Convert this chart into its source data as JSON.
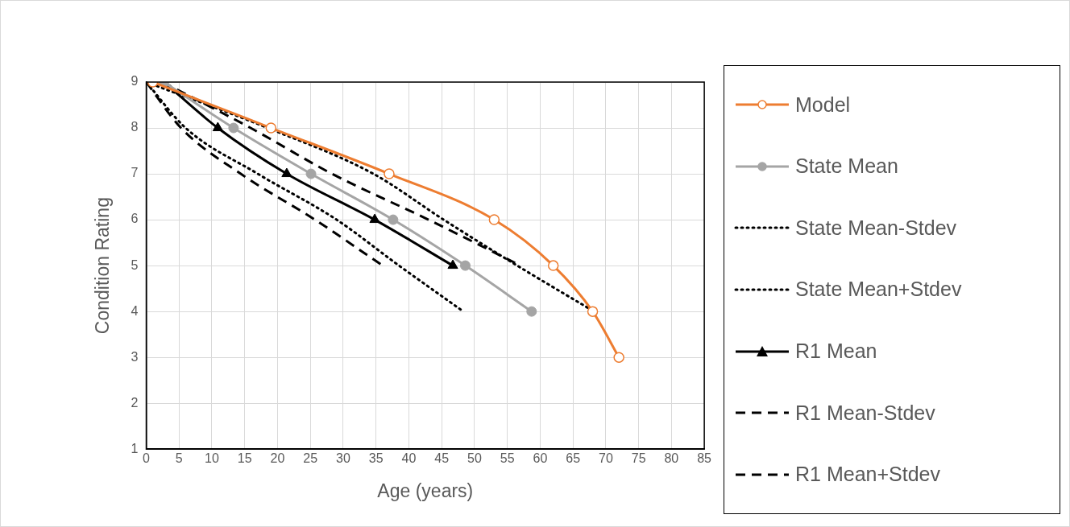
{
  "chart_data": {
    "type": "line",
    "xlabel": "Age (years)",
    "ylabel": "Condition Rating",
    "xlim": [
      0,
      85
    ],
    "xticks": [
      0,
      5,
      10,
      15,
      20,
      25,
      30,
      35,
      40,
      45,
      50,
      55,
      60,
      65,
      70,
      75,
      80,
      85
    ],
    "ylim": [
      1,
      9
    ],
    "yticks": [
      1,
      2,
      3,
      4,
      5,
      6,
      7,
      8,
      9
    ],
    "grid": true,
    "legend": "right",
    "series": [
      {
        "name": "Model",
        "color": "#ed7d31",
        "marker": "circle",
        "line_style": "solid",
        "x": [
          1,
          19,
          37,
          53,
          62,
          68,
          72
        ],
        "values": [
          9,
          8,
          7,
          6,
          5,
          4,
          3
        ]
      },
      {
        "name": "State Mean",
        "color": "#a5a5a5",
        "marker": "circle",
        "line_style": "solid",
        "x": [
          2.7,
          13.3,
          25.1,
          37.6,
          48.6,
          58.7
        ],
        "values": [
          9,
          8,
          7,
          6,
          5,
          4
        ]
      },
      {
        "name": "State Mean-Stdev",
        "color": "#000000",
        "marker": "none",
        "line_style": "dotted",
        "x": [
          0,
          6,
          17,
          29,
          38.5,
          48.3
        ],
        "values": [
          9,
          8,
          7,
          6,
          5,
          4
        ]
      },
      {
        "name": "State Mean+Stdev",
        "color": "#000000",
        "marker": "none",
        "line_style": "dotted",
        "x": [
          0,
          18.5,
          34.6,
          45.3,
          56.5,
          68.2
        ],
        "values": [
          9,
          8,
          7,
          6,
          5,
          4
        ]
      },
      {
        "name": "R1 Mean",
        "color": "#000000",
        "marker": "triangle",
        "line_style": "solid",
        "x": [
          2.7,
          10.9,
          21.4,
          34.8,
          46.7
        ],
        "values": [
          9,
          8,
          7,
          6,
          5
        ]
      },
      {
        "name": "R1 Mean-Stdev",
        "color": "#000000",
        "marker": "none",
        "line_style": "dashed",
        "x": [
          0,
          5.3,
          14.4,
          25.7,
          36
        ],
        "values": [
          9,
          8,
          7,
          6,
          5
        ]
      },
      {
        "name": "R1 Mean+Stdev",
        "color": "#000000",
        "marker": "none",
        "line_style": "dashed",
        "x": [
          2.5,
          15.9,
          28.3,
          43,
          57
        ],
        "values": [
          9,
          8,
          7,
          6,
          5
        ]
      }
    ]
  }
}
